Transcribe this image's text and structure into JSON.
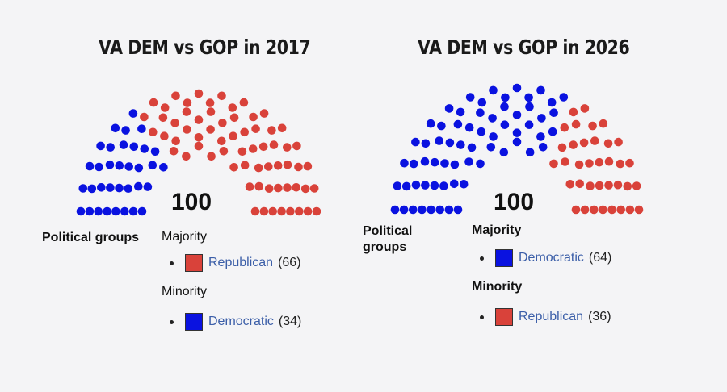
{
  "colors": {
    "republican": "#d9423a",
    "democratic": "#0a12e0"
  },
  "panels": [
    {
      "title": "VA DEM vs GOP in 2017",
      "total": "100",
      "political_groups_label": "Political groups",
      "majority_label": "Majority",
      "minority_label": "Minority",
      "majority": {
        "name": "Republican",
        "count": "(66)",
        "color": "#d9423a"
      },
      "minority": {
        "name": "Democratic",
        "count": "(34)",
        "color": "#0a12e0"
      }
    },
    {
      "title": "VA DEM vs GOP in 2026",
      "total": "100",
      "political_groups_label": "Political groups",
      "majority_label": "Majority",
      "minority_label": "Minority",
      "majority": {
        "name": "Democratic",
        "count": "(64)",
        "color": "#0a12e0"
      },
      "minority": {
        "name": "Republican",
        "count": "(36)",
        "color": "#d9423a"
      }
    }
  ],
  "chart_data": [
    {
      "type": "parliament",
      "title": "VA DEM vs GOP in 2017",
      "total_seats": 100,
      "series": [
        {
          "name": "Democratic",
          "values": [
            34
          ],
          "color": "#0a12e0"
        },
        {
          "name": "Republican",
          "values": [
            66
          ],
          "color": "#d9423a"
        }
      ]
    },
    {
      "type": "parliament",
      "title": "VA DEM vs GOP in 2026",
      "total_seats": 100,
      "series": [
        {
          "name": "Democratic",
          "values": [
            64
          ],
          "color": "#0a12e0"
        },
        {
          "name": "Republican",
          "values": [
            36
          ],
          "color": "#d9423a"
        }
      ]
    }
  ]
}
